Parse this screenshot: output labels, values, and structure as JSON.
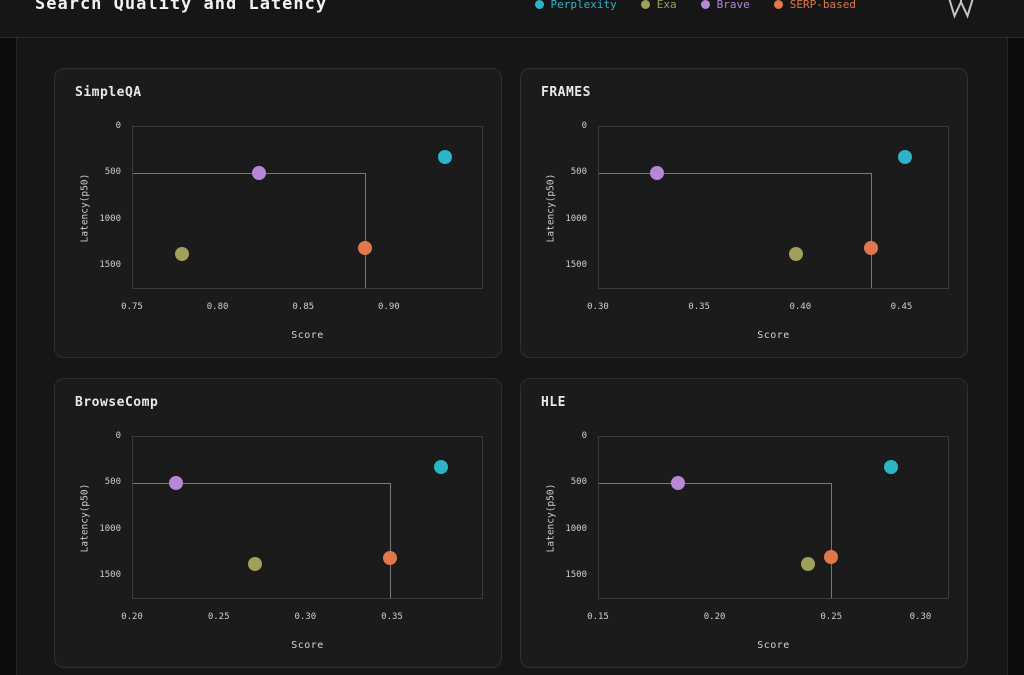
{
  "header": {
    "title": "Search Quality and Latency",
    "logo_icon": "w-mark-logo-icon"
  },
  "legend": [
    {
      "name": "Perplexity",
      "color": "#2db4c8"
    },
    {
      "name": "Exa",
      "color": "#a0a05a"
    },
    {
      "name": "Brave",
      "color": "#b987d7"
    },
    {
      "name": "SERP-based",
      "color": "#e1784b"
    }
  ],
  "chart_data": [
    {
      "type": "scatter",
      "title": "SimpleQA",
      "xlabel": "Score",
      "ylabel": "Latency(p50)",
      "xlim": [
        0.75,
        0.955
      ],
      "ylim": [
        0,
        1760
      ],
      "y_inverted": true,
      "grid": false,
      "xticks": [
        0.75,
        0.8,
        0.85,
        0.9
      ],
      "xtick_labels": [
        "0.75",
        "0.80",
        "0.85",
        "0.90"
      ],
      "yticks": [
        0,
        500,
        1000,
        1500
      ],
      "ytick_labels": [
        "0",
        "500",
        "1000",
        "1500"
      ],
      "points": [
        {
          "series": "Perplexity",
          "x": 0.933,
          "y": 330
        },
        {
          "series": "Exa",
          "x": 0.779,
          "y": 1385
        },
        {
          "series": "Brave",
          "x": 0.824,
          "y": 505
        },
        {
          "series": "SERP-based",
          "x": 0.886,
          "y": 1325
        }
      ],
      "ref_lines": {
        "x": 0.886,
        "y": 505
      }
    },
    {
      "type": "scatter",
      "title": "FRAMES",
      "xlabel": "Score",
      "ylabel": "Latency(p50)",
      "xlim": [
        0.3,
        0.4735
      ],
      "ylim": [
        0,
        1760
      ],
      "y_inverted": true,
      "grid": false,
      "xticks": [
        0.3,
        0.35,
        0.4,
        0.45
      ],
      "xtick_labels": [
        "0.30",
        "0.35",
        "0.40",
        "0.45"
      ],
      "yticks": [
        0,
        500,
        1000,
        1500
      ],
      "ytick_labels": [
        "0",
        "500",
        "1000",
        "1500"
      ],
      "points": [
        {
          "series": "Perplexity",
          "x": 0.452,
          "y": 330
        },
        {
          "series": "Exa",
          "x": 0.398,
          "y": 1385
        },
        {
          "series": "Brave",
          "x": 0.329,
          "y": 505
        },
        {
          "series": "SERP-based",
          "x": 0.435,
          "y": 1325
        }
      ],
      "ref_lines": {
        "x": 0.435,
        "y": 505
      }
    },
    {
      "type": "scatter",
      "title": "BrowseComp",
      "xlabel": "Score",
      "ylabel": "Latency(p50)",
      "xlim": [
        0.2,
        0.4025
      ],
      "ylim": [
        0,
        1760
      ],
      "y_inverted": true,
      "grid": false,
      "xticks": [
        0.2,
        0.25,
        0.3,
        0.35
      ],
      "xtick_labels": [
        "0.20",
        "0.25",
        "0.30",
        "0.35"
      ],
      "yticks": [
        0,
        500,
        1000,
        1500
      ],
      "ytick_labels": [
        "0",
        "500",
        "1000",
        "1500"
      ],
      "points": [
        {
          "series": "Perplexity",
          "x": 0.379,
          "y": 330
        },
        {
          "series": "Exa",
          "x": 0.271,
          "y": 1390
        },
        {
          "series": "Brave",
          "x": 0.225,
          "y": 505
        },
        {
          "series": "SERP-based",
          "x": 0.349,
          "y": 1325
        }
      ],
      "ref_lines": {
        "x": 0.349,
        "y": 505
      }
    },
    {
      "type": "scatter",
      "title": "HLE",
      "xlabel": "Score",
      "ylabel": "Latency(p50)",
      "xlim": [
        0.15,
        0.3005
      ],
      "ylim": [
        0,
        1760
      ],
      "y_inverted": true,
      "grid": false,
      "xticks": [
        0.15,
        0.2,
        0.25,
        0.3
      ],
      "xtick_labels": [
        "0.15",
        "0.20",
        "0.25",
        "0.30"
      ],
      "yticks": [
        0,
        500,
        1000,
        1500
      ],
      "ytick_labels": [
        "0",
        "500",
        "1000",
        "1500"
      ],
      "points": [
        {
          "series": "Perplexity",
          "x": 0.276,
          "y": 330
        },
        {
          "series": "Exa",
          "x": 0.24,
          "y": 1390
        },
        {
          "series": "Brave",
          "x": 0.184,
          "y": 505
        },
        {
          "series": "SERP-based",
          "x": 0.25,
          "y": 1315
        }
      ],
      "ref_lines": {
        "x": 0.25,
        "y": 505
      }
    }
  ]
}
